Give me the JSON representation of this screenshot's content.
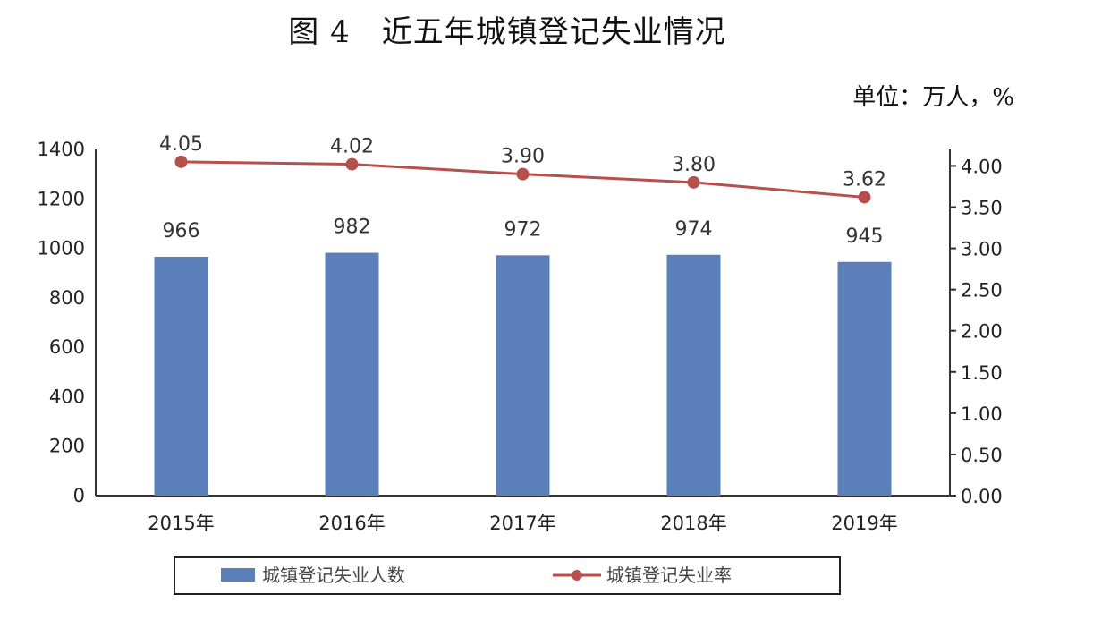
{
  "chart_data": {
    "type": "bar+line",
    "title": "图 4　近五年城镇登记失业情况",
    "unit_label": "单位：万人，%",
    "categories": [
      "2015年",
      "2016年",
      "2017年",
      "2018年",
      "2019年"
    ],
    "series": [
      {
        "name": "城镇登记失业人数",
        "type": "bar",
        "axis": "left",
        "color": "#5b80b9",
        "values": [
          966,
          982,
          972,
          974,
          945
        ],
        "labels": [
          "966",
          "982",
          "972",
          "974",
          "945"
        ]
      },
      {
        "name": "城镇登记失业率",
        "type": "line",
        "axis": "right",
        "color": "#b5504d",
        "values": [
          4.05,
          4.02,
          3.9,
          3.8,
          3.62
        ],
        "labels": [
          "4.05",
          "4.02",
          "3.90",
          "3.80",
          "3.62"
        ]
      }
    ],
    "left_axis": {
      "range": [
        0,
        1400
      ],
      "ticks": [
        "0",
        "200",
        "400",
        "600",
        "800",
        "1000",
        "1200",
        "1400"
      ]
    },
    "right_axis": {
      "range": [
        0,
        4.2
      ],
      "ticks": [
        "0.00",
        "0.50",
        "1.00",
        "1.50",
        "2.00",
        "2.50",
        "3.00",
        "3.50",
        "4.00"
      ]
    },
    "legend_position": "bottom",
    "grid": false
  }
}
